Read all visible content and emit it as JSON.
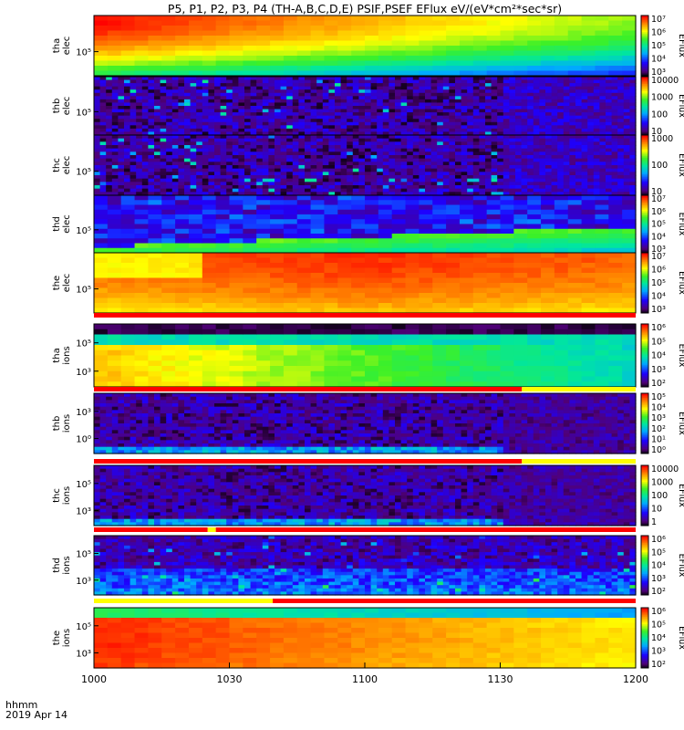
{
  "figure": {
    "title": "P5, P1, P2, P3, P4  (TH-A,B,C,D,E)  PSIF,PSEF  EFlux  eV/(eV*cm²*sec*sr)",
    "time_unit_label": "hhmm",
    "date_label": "2019 Apr 14"
  },
  "chart_data": {
    "type": "heatmap",
    "x": {
      "ticks": [
        "1000",
        "1030",
        "1100",
        "1130",
        "1200"
      ],
      "range": [
        "10:00",
        "12:00"
      ]
    },
    "panels": [
      {
        "label": [
          "tha",
          "elec"
        ],
        "ytick_labels": [
          "10⁵"
        ],
        "colorbar_ticks": [
          "10⁷",
          "10⁶",
          "10⁵",
          "10⁴",
          "10³"
        ],
        "colorbar_label": "EFlux",
        "pattern": "elec_a"
      },
      {
        "label": [
          "thb",
          "elec"
        ],
        "ytick_labels": [
          "10⁵"
        ],
        "colorbar_ticks": [
          "10000",
          "1000",
          "100",
          "10"
        ],
        "colorbar_label": "EFlux",
        "pattern": "noise_b"
      },
      {
        "label": [
          "thc",
          "elec"
        ],
        "ytick_labels": [
          "10⁵"
        ],
        "colorbar_ticks": [
          "1000",
          "100",
          "10"
        ],
        "colorbar_label": "EFlux",
        "pattern": "noise_c"
      },
      {
        "label": [
          "thd",
          "elec"
        ],
        "ytick_labels": [
          "10⁵"
        ],
        "colorbar_ticks": [
          "10⁷",
          "10⁶",
          "10⁵",
          "10⁴",
          "10³"
        ],
        "colorbar_label": "EFlux",
        "pattern": "elec_d"
      },
      {
        "label": [
          "the",
          "elec"
        ],
        "ytick_labels": [
          "10⁵"
        ],
        "colorbar_ticks": [
          "10⁷",
          "10⁶",
          "10⁵",
          "10⁴",
          "10³"
        ],
        "colorbar_label": "EFlux",
        "pattern": "elec_e"
      },
      {
        "label": [
          "tha",
          "ions"
        ],
        "ytick_labels": [
          "10⁵",
          "10³"
        ],
        "colorbar_ticks": [
          "10⁶",
          "10⁵",
          "10⁴",
          "10³",
          "10²"
        ],
        "colorbar_label": "EFlux",
        "pattern": "ions_a"
      },
      {
        "label": [
          "thb",
          "ions"
        ],
        "ytick_labels": [
          "10³",
          "10⁰"
        ],
        "colorbar_ticks": [
          "10⁵",
          "10⁴",
          "10³",
          "10²",
          "10¹",
          "10⁰"
        ],
        "colorbar_label": "EFlux",
        "pattern": "ions_b"
      },
      {
        "label": [
          "thc",
          "ions"
        ],
        "ytick_labels": [
          "10⁵",
          "10³"
        ],
        "colorbar_ticks": [
          "10000",
          "1000",
          "100",
          "10",
          "1"
        ],
        "colorbar_label": "EFlux",
        "pattern": "ions_c"
      },
      {
        "label": [
          "thd",
          "ions"
        ],
        "ytick_labels": [
          "10⁵",
          "10³"
        ],
        "colorbar_ticks": [
          "10⁶",
          "10⁵",
          "10⁴",
          "10³",
          "10²"
        ],
        "colorbar_label": "EFlux",
        "pattern": "ions_d"
      },
      {
        "label": [
          "the",
          "ions"
        ],
        "ytick_labels": [
          "10⁵",
          "10³"
        ],
        "colorbar_ticks": [
          "10⁶",
          "10⁵",
          "10⁴",
          "10³",
          "10²"
        ],
        "colorbar_label": "EFlux",
        "pattern": "ions_e"
      }
    ],
    "mode_bars": [
      {
        "after_panel": 4,
        "segments": [
          {
            "start": 0,
            "end": 1,
            "color": "#ff0000"
          }
        ]
      },
      {
        "after_panel": 5,
        "segments": [
          {
            "start": 0,
            "end": 0.79,
            "color": "#ff0000"
          },
          {
            "start": 0.79,
            "end": 1,
            "color": "#ffff00"
          }
        ]
      },
      {
        "after_panel": 6,
        "segments": [
          {
            "start": 0,
            "end": 0.79,
            "color": "#ff0000"
          },
          {
            "start": 0.79,
            "end": 1,
            "color": "#ffff00"
          }
        ]
      },
      {
        "after_panel": 7,
        "segments": [
          {
            "start": 0,
            "end": 0.21,
            "color": "#ff0000"
          },
          {
            "start": 0.21,
            "end": 0.225,
            "color": "#ffff00"
          },
          {
            "start": 0.225,
            "end": 1,
            "color": "#ff0000"
          }
        ]
      },
      {
        "after_panel": 8,
        "segments": [
          {
            "start": 0,
            "end": 0.33,
            "color": "#ffff00"
          },
          {
            "start": 0.33,
            "end": 1,
            "color": "#ff0000"
          }
        ]
      }
    ]
  }
}
